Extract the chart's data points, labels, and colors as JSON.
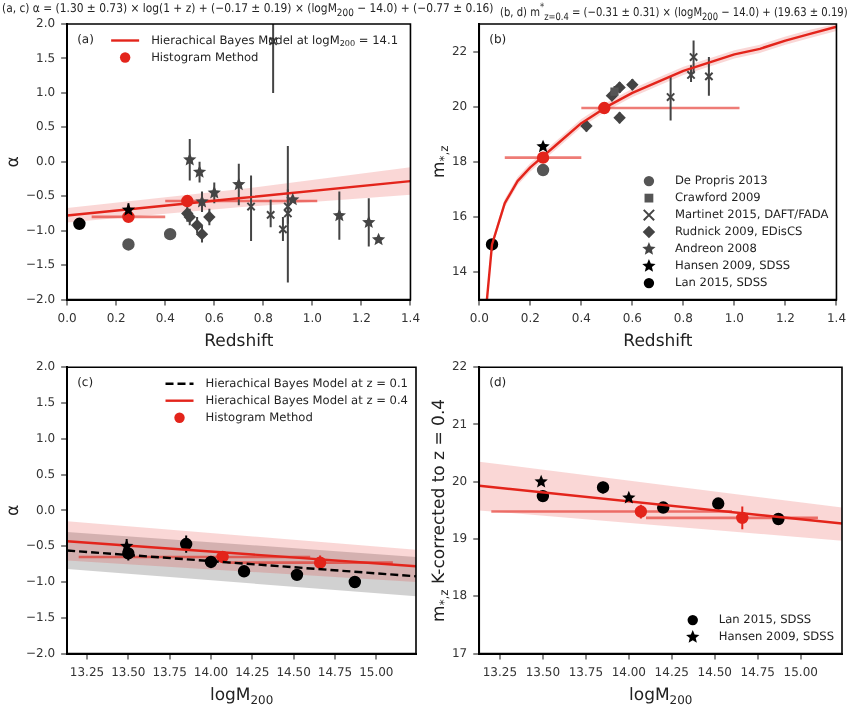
{
  "chart_data": [
    {
      "type": "scatter",
      "title": "(a, c) α = (1.30 ± 0.73) × log(1 + z) + (−0.17 ± 0.19) × (logM$_{200}$ − 14.0) + (−0.77 ± 0.16)",
      "xlabel": "Redshift",
      "ylabel": "α",
      "annotations": [
        "(a)"
      ],
      "legend": "top",
      "grid": false,
      "xlim": [
        0,
        1.4
      ],
      "xticks": [
        {
          "value": 0,
          "label": "0.0"
        },
        0.2,
        0.4,
        0.6,
        0.8,
        {
          "value": 1,
          "label": "1.0"
        },
        1.2,
        1.4
      ],
      "ylim": [
        -2,
        2
      ],
      "yticks": [
        {
          "value": -2,
          "label": "−2.0"
        },
        {
          "value": -1.5,
          "label": "−1.5"
        },
        {
          "value": -1,
          "label": "−1.0"
        },
        {
          "value": -0.5,
          "label": "−0.5"
        },
        {
          "value": 0,
          "label": "0.0"
        },
        0.5,
        {
          "value": 1,
          "label": "1.0"
        },
        1.5,
        {
          "value": 2,
          "label": "2.0"
        }
      ],
      "series": [
        {
          "name": "Hierachical Bayes Model at logM$_{200}$ = 14.1",
          "type": "line",
          "color": "#e3241b",
          "marker": "none",
          "x": [
            0,
            0.7,
            1.4
          ],
          "values": [
            -0.78,
            -0.53,
            -0.28
          ],
          "lower": [
            -0.88,
            -0.66,
            -0.48
          ],
          "upper": [
            -0.67,
            -0.4,
            -0.08
          ]
        },
        {
          "name": "Histogram Method",
          "type": "scatter",
          "color": "#e3241b",
          "marker": "circle",
          "x": [
            0.25,
            0.49
          ],
          "values": [
            -0.8,
            -0.57
          ],
          "xerrors": [
            [
              0.1,
              0.4
            ],
            [
              0.4,
              1.02
            ]
          ]
        },
        {
          "type": "scatter",
          "color": "#000000",
          "marker": "circle",
          "x": [
            0.05
          ],
          "values": [
            -0.9
          ]
        },
        {
          "type": "scatter",
          "color": "#000000",
          "marker": "star",
          "x": [
            0.25
          ],
          "values": [
            -0.7
          ],
          "errors": [
            [
              -0.8,
              -0.6
            ]
          ]
        },
        {
          "type": "scatter",
          "color": "#555555",
          "marker": "circle",
          "x": [
            0.25,
            0.42
          ],
          "values": [
            -1.2,
            -1.05
          ]
        },
        {
          "type": "scatter",
          "color": "#444444",
          "marker": "diamond",
          "x": [
            0.49,
            0.5,
            0.53,
            0.55,
            0.58
          ],
          "values": [
            -0.75,
            -0.8,
            -0.92,
            -1.05,
            -0.8
          ],
          "errors": [
            0.12,
            0.12,
            0.12,
            0.12,
            0.12
          ]
        },
        {
          "type": "scatter",
          "color": "#444444",
          "marker": "cross",
          "x": [
            0.75,
            0.83,
            0.84,
            0.88,
            0.9,
            0.9
          ],
          "values": [
            -0.65,
            -0.77,
            1.75,
            -0.98,
            -0.75,
            -0.65
          ],
          "errors": [
            [
              -1.15,
              -0.2
            ],
            [
              -0.95,
              -0.55
            ],
            [
              1.0,
              2.0
            ],
            [
              -1.15,
              -0.8
            ],
            [
              -1.75,
              0.23
            ],
            [
              -0.9,
              -0.4
            ]
          ]
        },
        {
          "type": "scatter",
          "color": "#444444",
          "marker": "star",
          "x": [
            0.5,
            0.54,
            0.55,
            0.6,
            0.7,
            0.92,
            1.11,
            1.23,
            1.27
          ],
          "values": [
            0.03,
            -0.15,
            -0.58,
            -0.45,
            -0.33,
            -0.55,
            -0.78,
            -0.88,
            -1.13
          ],
          "errors": [
            0.3,
            0.15,
            0.15,
            0.15,
            0.3,
            null,
            0.35,
            0.35,
            null
          ]
        }
      ]
    },
    {
      "type": "scatter",
      "title": "(b, d) m$^{*}$$_{z=0.4}$ = (−0.31 ± 0.31) × (logM$_{200}$ − 14.0) + (19.63 ± 0.19)",
      "xlabel": "Redshift",
      "ylabel": "m$_{*,z}$",
      "annotations": [
        "(b)"
      ],
      "legend": "bottom right",
      "grid": false,
      "xlim": [
        0,
        1.4
      ],
      "xticks": [
        {
          "value": 0,
          "label": "0.0"
        },
        0.2,
        0.4,
        0.6,
        0.8,
        {
          "value": 1,
          "label": "1.0"
        },
        1.2,
        1.4
      ],
      "ylim": [
        13,
        23
      ],
      "yticks": [
        14,
        16,
        18,
        20,
        22
      ],
      "series": [
        {
          "type": "line",
          "color": "#e3241b",
          "marker": "none",
          "x": [
            0.03,
            0.05,
            0.1,
            0.15,
            0.2,
            0.25,
            0.3,
            0.4,
            0.5,
            0.6,
            0.7,
            0.8,
            0.9,
            1.0,
            1.1,
            1.2,
            1.3,
            1.4
          ],
          "values": [
            13.0,
            15.0,
            16.5,
            17.3,
            17.8,
            18.2,
            18.6,
            19.4,
            20.0,
            20.5,
            20.9,
            21.3,
            21.6,
            21.9,
            22.1,
            22.4,
            22.65,
            22.9
          ],
          "lower": [
            13.0,
            14.85,
            16.35,
            17.15,
            17.65,
            18.05,
            18.45,
            19.25,
            19.85,
            20.35,
            20.75,
            21.15,
            21.45,
            21.75,
            21.95,
            22.25,
            22.5,
            22.75
          ],
          "upper": [
            13.0,
            15.15,
            16.65,
            17.45,
            17.95,
            18.35,
            18.75,
            19.55,
            20.15,
            20.65,
            21.05,
            21.45,
            21.75,
            22.05,
            22.25,
            22.55,
            22.8,
            23.0
          ]
        },
        {
          "type": "scatter",
          "color": "#e3241b",
          "marker": "circle",
          "x": [
            0.25,
            0.49
          ],
          "values": [
            18.15,
            19.95
          ],
          "xerrors": [
            [
              0.1,
              0.4
            ],
            [
              0.4,
              1.02
            ]
          ]
        },
        {
          "name": "De Propris 2013",
          "type": "scatter",
          "color": "#555555",
          "marker": "circle",
          "x": [
            0.25
          ],
          "values": [
            17.7
          ],
          "errors": [
            0.15
          ]
        },
        {
          "name": "Crawford 2009",
          "type": "scatter",
          "color": "#555555",
          "marker": "square",
          "x": [
            0.53
          ],
          "values": [
            20.55
          ],
          "errors": [
            0.2
          ]
        },
        {
          "name": "Martinet 2015, DAFT/FADA",
          "type": "scatter",
          "color": "#444444",
          "marker": "cross",
          "x": [
            0.75,
            0.83,
            0.84,
            0.9
          ],
          "values": [
            20.35,
            21.15,
            21.8,
            21.1
          ],
          "errors": [
            [
              19.5,
              21.1
            ],
            [
              20.9,
              21.5
            ],
            [
              21.2,
              22.4
            ],
            [
              20.4,
              21.8
            ]
          ]
        },
        {
          "name": "Rudnick 2009, EDisCS",
          "type": "scatter",
          "color": "#444444",
          "marker": "diamond",
          "x": [
            0.42,
            0.52,
            0.55,
            0.55,
            0.6
          ],
          "values": [
            19.3,
            20.4,
            20.7,
            19.6,
            20.8
          ],
          "errors": [
            0.2,
            0.2,
            0.2,
            0.2,
            0.2
          ]
        },
        {
          "name": "Andreon 2008",
          "type": "scatter",
          "color": "#444444",
          "marker": "star"
        },
        {
          "name": "Hansen 2009, SDSS",
          "type": "scatter",
          "color": "#000000",
          "marker": "star",
          "x": [
            0.25
          ],
          "values": [
            18.55
          ]
        },
        {
          "name": "Lan 2015, SDSS",
          "type": "scatter",
          "color": "#000000",
          "marker": "circle",
          "x": [
            0.05
          ],
          "values": [
            15.0
          ]
        }
      ]
    },
    {
      "type": "scatter",
      "xlabel": "logM$_{200}$",
      "ylabel": "α",
      "annotations": [
        "(c)"
      ],
      "legend": "top right",
      "grid": false,
      "xlim": [
        13.13,
        15.24
      ],
      "xticks": [
        13.25,
        {
          "value": 13.5,
          "label": "13.50"
        },
        13.75,
        {
          "value": 14,
          "label": "14.00"
        },
        14.25,
        {
          "value": 14.5,
          "label": "14.50"
        },
        14.75,
        {
          "value": 15,
          "label": "15.00"
        }
      ],
      "ylim": [
        -2,
        2
      ],
      "yticks": [
        {
          "value": -2,
          "label": "−2.0"
        },
        {
          "value": -1.5,
          "label": "−1.5"
        },
        {
          "value": -1,
          "label": "−1.0"
        },
        {
          "value": -0.5,
          "label": "−0.5"
        },
        {
          "value": 0,
          "label": "0.0"
        },
        0.5,
        {
          "value": 1,
          "label": "1.0"
        },
        1.5,
        {
          "value": 2,
          "label": "2.0"
        }
      ],
      "series": [
        {
          "name": "Hierachical Bayes Model at z = 0.1",
          "type": "line",
          "line_style": "dashed",
          "color": "#000000",
          "marker": "none",
          "x": [
            13.13,
            15.24
          ],
          "values": [
            -0.56,
            -0.92
          ],
          "lower": [
            -0.82,
            -1.2
          ],
          "upper": [
            -0.3,
            -0.65
          ]
        },
        {
          "name": "Hierachical Bayes Model at z = 0.4",
          "type": "line",
          "color": "#e3241b",
          "marker": "none",
          "x": [
            13.13,
            15.24
          ],
          "values": [
            -0.43,
            -0.78
          ],
          "lower": [
            -0.7,
            -1.0
          ],
          "upper": [
            -0.15,
            -0.55
          ]
        },
        {
          "name": "Histogram Method",
          "type": "scatter",
          "color": "#e3241b",
          "marker": "circle",
          "x": [
            14.07,
            14.66
          ],
          "values": [
            -0.65,
            -0.73
          ],
          "xerrors": [
            [
              13.2,
              14.6
            ],
            [
              14.1,
              15.1
            ]
          ],
          "errors": [
            0.08,
            0.1
          ]
        },
        {
          "type": "scatter",
          "color": "#000000",
          "marker": "circle",
          "x": [
            13.5,
            13.85,
            14.0,
            14.2,
            14.52,
            14.87
          ],
          "values": [
            -0.6,
            -0.47,
            -0.72,
            -0.85,
            -0.9,
            -1.0
          ],
          "errors": [
            0.1,
            0.12,
            0.05,
            0.05,
            0.05,
            0.05
          ]
        },
        {
          "type": "scatter",
          "color": "#000000",
          "marker": "star",
          "x": [
            13.49
          ],
          "values": [
            -0.5
          ],
          "errors": [
            0.1
          ]
        }
      ]
    },
    {
      "type": "scatter",
      "xlabel": "logM$_{200}$",
      "ylabel": "m$_{*,z}$ K-corrected to z = 0.4",
      "annotations": [
        "(d)"
      ],
      "legend": "bottom right",
      "grid": false,
      "xlim": [
        13.13,
        15.24
      ],
      "xticks": [
        13.25,
        {
          "value": 13.5,
          "label": "13.50"
        },
        13.75,
        {
          "value": 14,
          "label": "14.00"
        },
        14.25,
        {
          "value": 14.5,
          "label": "14.50"
        },
        14.75,
        {
          "value": 15,
          "label": "15.00"
        }
      ],
      "ylim": [
        17,
        22
      ],
      "yticks": [
        17,
        18,
        19,
        20,
        21,
        22
      ],
      "series": [
        {
          "type": "line",
          "color": "#e3241b",
          "marker": "none",
          "x": [
            13.13,
            15.24
          ],
          "values": [
            19.93,
            19.27
          ],
          "lower": [
            19.5,
            18.97
          ],
          "upper": [
            20.35,
            19.55
          ]
        },
        {
          "type": "scatter",
          "color": "#e3241b",
          "marker": "circle",
          "x": [
            14.07,
            14.66
          ],
          "values": [
            19.48,
            19.37
          ],
          "xerrors": [
            [
              13.2,
              14.6
            ],
            [
              14.1,
              15.1
            ]
          ],
          "errors": [
            0.12,
            0.2
          ]
        },
        {
          "name": "Lan 2015, SDSS",
          "type": "scatter",
          "color": "#000000",
          "marker": "circle",
          "x": [
            13.5,
            13.85,
            14.2,
            14.52,
            14.87
          ],
          "values": [
            19.75,
            19.9,
            19.55,
            19.62,
            19.35
          ],
          "errors": [
            0.08,
            0.1,
            0.05,
            0.05,
            0.05
          ]
        },
        {
          "name": "Hansen 2009, SDSS",
          "type": "scatter",
          "color": "#000000",
          "marker": "star",
          "x": [
            13.49,
            14.0
          ],
          "values": [
            20.0,
            19.72
          ]
        }
      ]
    }
  ]
}
